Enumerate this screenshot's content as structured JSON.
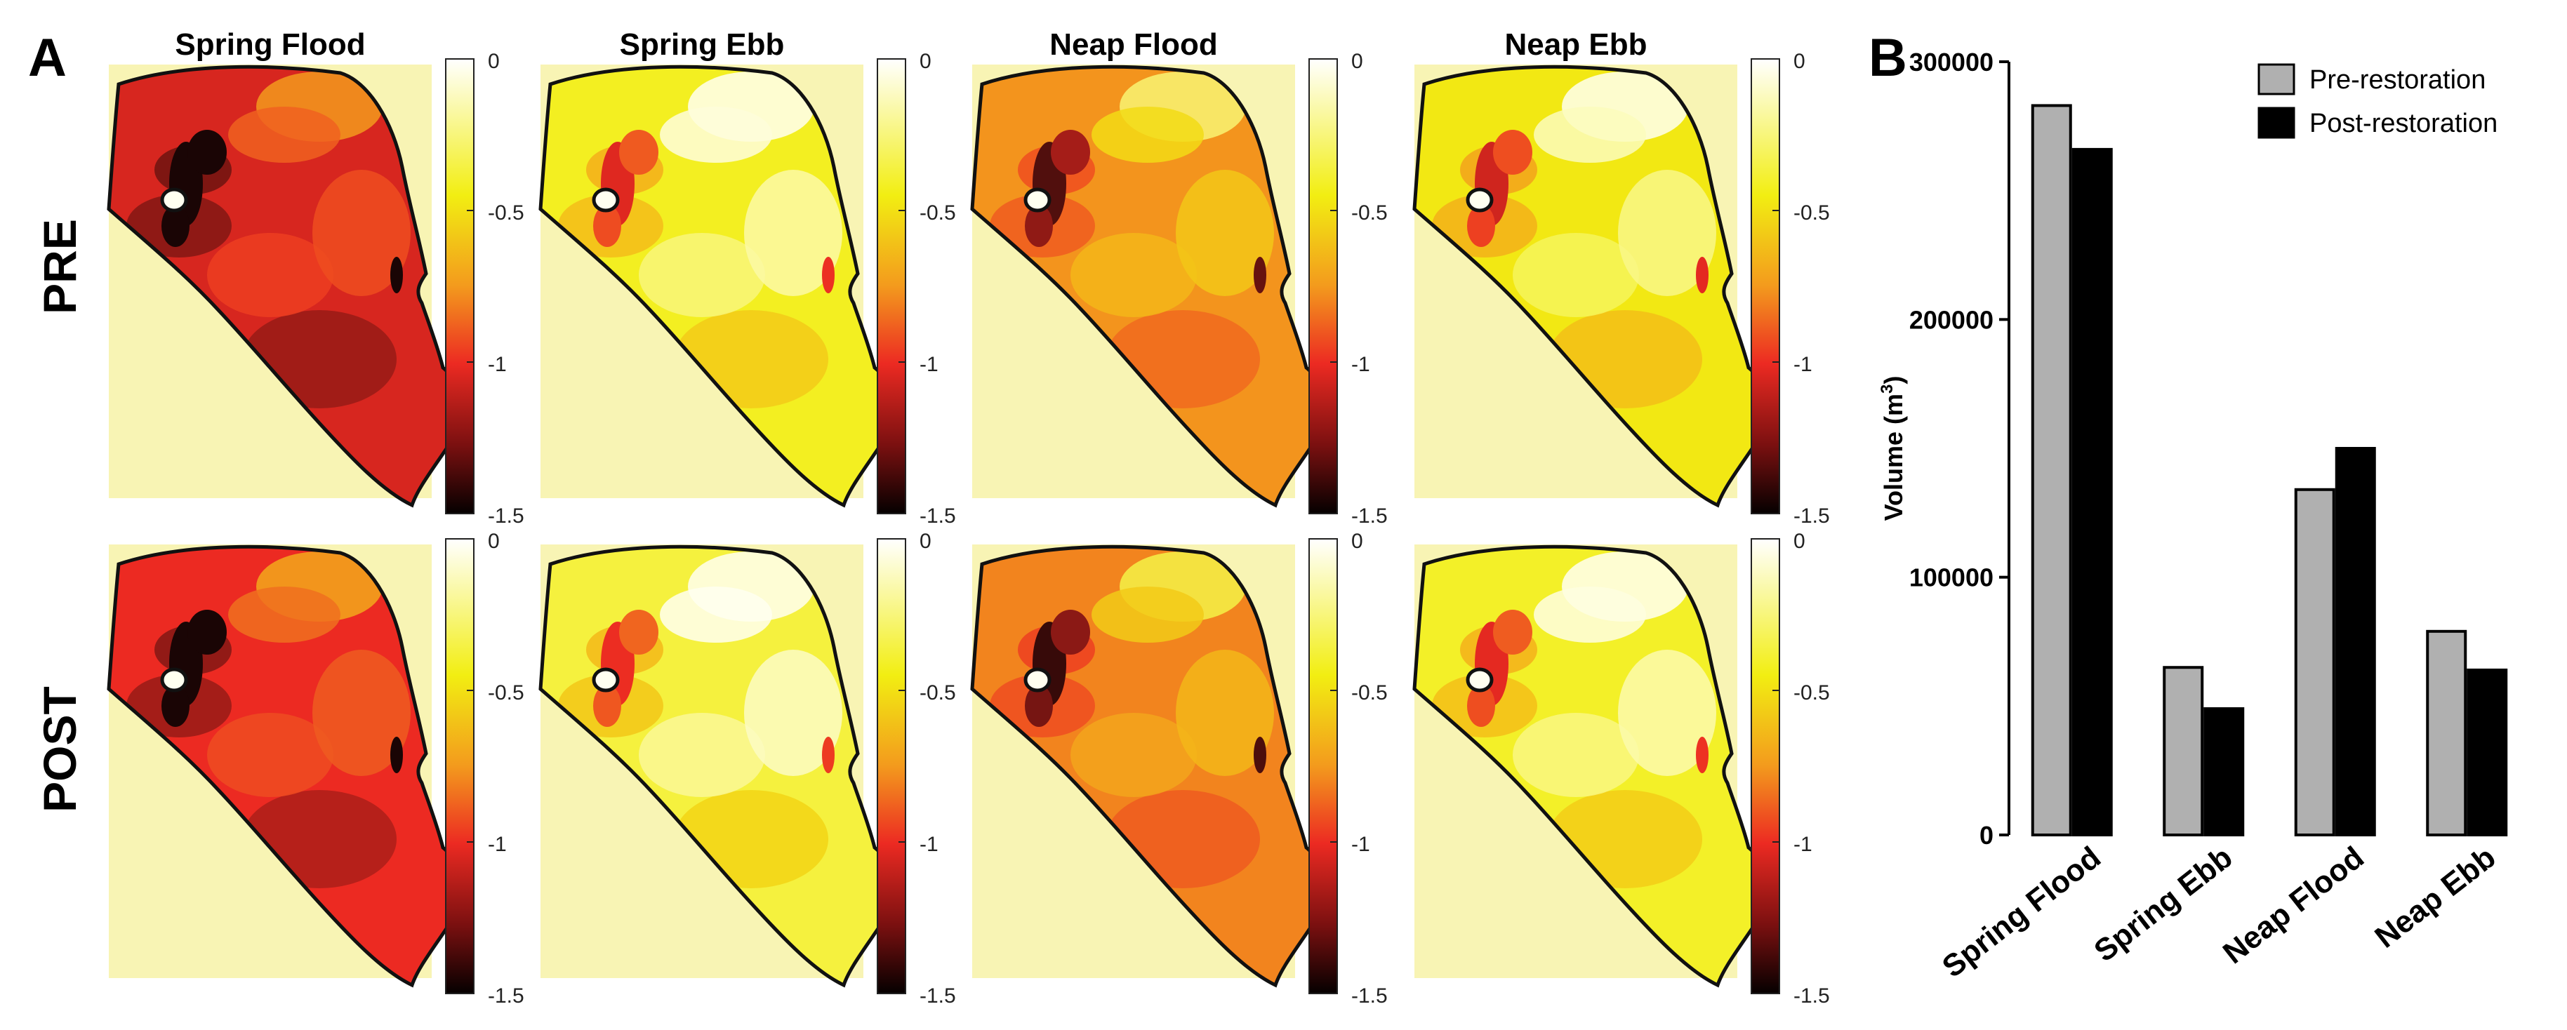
{
  "panel_a": {
    "label": "A",
    "columns": [
      "Spring Flood",
      "Spring Ebb",
      "Neap Flood",
      "Neap Ebb"
    ],
    "rows": [
      "PRE",
      "POST"
    ],
    "colorbar_ticks": [
      "0",
      "-0.5",
      "-1",
      "-1.5"
    ],
    "colorbar_values": [
      0,
      -0.5,
      -1,
      -1.5
    ],
    "colorbar_range": [
      -1.5,
      0
    ],
    "colors": {
      "white": "#fffff0",
      "yellow": "#f2ee12",
      "orange": "#f39a1d",
      "red": "#ec2a22",
      "dark": "#1a0505",
      "background": "#f8f4b4",
      "outline": "#111111"
    },
    "maps": [
      {
        "row": "PRE",
        "column": "Spring Flood",
        "mean_level": -1.05
      },
      {
        "row": "PRE",
        "column": "Spring Ebb",
        "mean_level": -0.28
      },
      {
        "row": "PRE",
        "column": "Neap Flood",
        "mean_level": -0.62
      },
      {
        "row": "PRE",
        "column": "Neap Ebb",
        "mean_level": -0.32
      },
      {
        "row": "POST",
        "column": "Spring Flood",
        "mean_level": -1.0
      },
      {
        "row": "POST",
        "column": "Spring Ebb",
        "mean_level": -0.24
      },
      {
        "row": "POST",
        "column": "Neap Flood",
        "mean_level": -0.68
      },
      {
        "row": "POST",
        "column": "Neap Ebb",
        "mean_level": -0.27
      }
    ]
  },
  "chart_data": {
    "label": "B",
    "type": "bar",
    "categories": [
      "Spring Flood",
      "Spring Ebb",
      "Neap Flood",
      "Neap Ebb"
    ],
    "series": [
      {
        "name": "Pre-restoration",
        "color": "#b0b0b0",
        "values": [
          283000,
          65000,
          134000,
          79000
        ]
      },
      {
        "name": "Post-restoration",
        "color": "#000000",
        "values": [
          266000,
          49000,
          150000,
          64000
        ]
      }
    ],
    "title": "",
    "xlabel": "",
    "ylabel_text": "Volume (m",
    "ylabel_sup": "3",
    "ylabel_close": ")",
    "ylim": [
      0,
      300000
    ],
    "yticks": [
      0,
      100000,
      200000,
      300000
    ],
    "ytick_labels": [
      "0",
      "100000",
      "200000",
      "300000"
    ],
    "legend_position": "top-right",
    "grid": false
  }
}
